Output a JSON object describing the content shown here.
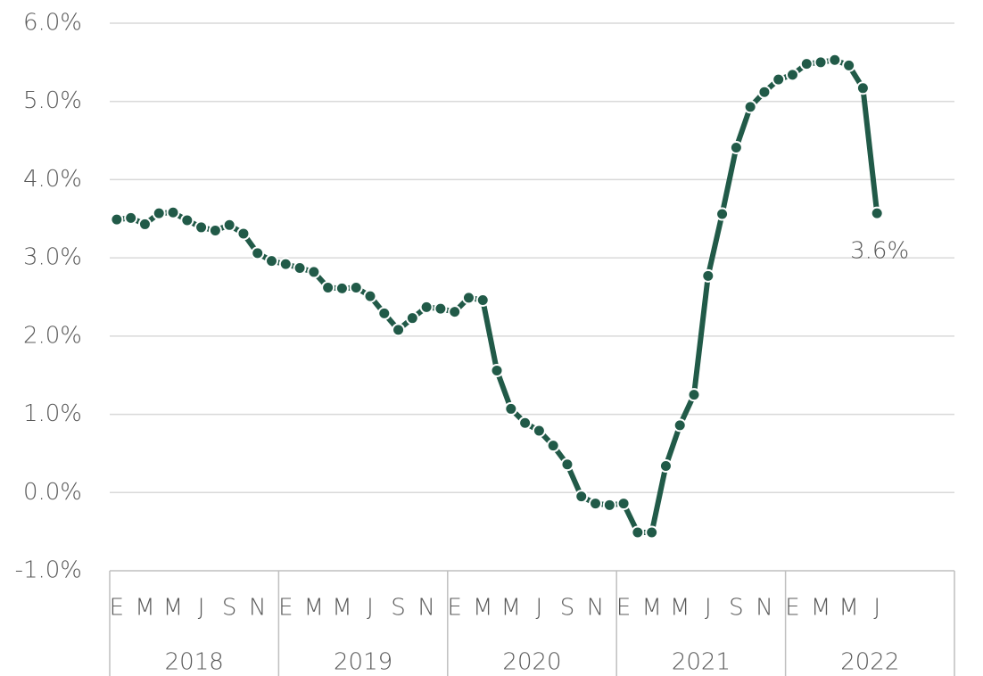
{
  "chart_data": {
    "type": "line",
    "categories": [
      "E",
      null,
      "M",
      null,
      "M",
      null,
      "J",
      null,
      "S",
      null,
      "N",
      null,
      "E",
      null,
      "M",
      null,
      "M",
      null,
      "J",
      null,
      "S",
      null,
      "N",
      null,
      "E",
      null,
      "M",
      null,
      "M",
      null,
      "J",
      null,
      "S",
      null,
      "N",
      null,
      "E",
      null,
      "M",
      null,
      "M",
      null,
      "J",
      null,
      "S",
      null,
      "N",
      null,
      "E",
      null,
      "M",
      null,
      "M",
      null,
      "J"
    ],
    "years": [
      "2018",
      "2019",
      "2020",
      "2021",
      "2022"
    ],
    "series": [
      {
        "color": "#215a48",
        "values": [
          3.49,
          3.51,
          3.43,
          3.57,
          3.58,
          3.48,
          3.39,
          3.35,
          3.42,
          3.31,
          3.06,
          2.96,
          2.92,
          2.87,
          2.82,
          2.62,
          2.61,
          2.62,
          2.51,
          2.29,
          2.08,
          2.23,
          2.37,
          2.35,
          2.31,
          2.49,
          2.46,
          1.56,
          1.07,
          0.89,
          0.79,
          0.6,
          0.36,
          -0.05,
          -0.14,
          -0.16,
          -0.14,
          -0.51,
          -0.51,
          0.34,
          0.86,
          1.25,
          2.77,
          3.56,
          4.41,
          4.93,
          5.12,
          5.28,
          5.34,
          5.48,
          5.5,
          5.53,
          5.46,
          5.17,
          3.57
        ],
        "value_labels": [
          null,
          null,
          null,
          null,
          null,
          null,
          null,
          null,
          null,
          null,
          null,
          null,
          null,
          null,
          null,
          null,
          null,
          null,
          null,
          null,
          null,
          null,
          null,
          null,
          null,
          null,
          null,
          null,
          null,
          null,
          null,
          null,
          null,
          null,
          null,
          null,
          null,
          null,
          null,
          null,
          null,
          null,
          null,
          null,
          null,
          null,
          null,
          null,
          null,
          null,
          null,
          null,
          null,
          null,
          "3.6%"
        ]
      }
    ],
    "ylim": [
      -1,
      6
    ],
    "yticks": [
      {
        "value": -1,
        "label": "-1.0%"
      },
      {
        "value": 0,
        "label": "0.0%"
      },
      {
        "value": 1,
        "label": "1.0%"
      },
      {
        "value": 2,
        "label": "2.0%"
      },
      {
        "value": 3,
        "label": "3.0%"
      },
      {
        "value": 4,
        "label": "4.0%"
      },
      {
        "value": 5,
        "label": "5.0%"
      },
      {
        "value": 6,
        "label": "6.0%"
      }
    ],
    "grid": true
  }
}
